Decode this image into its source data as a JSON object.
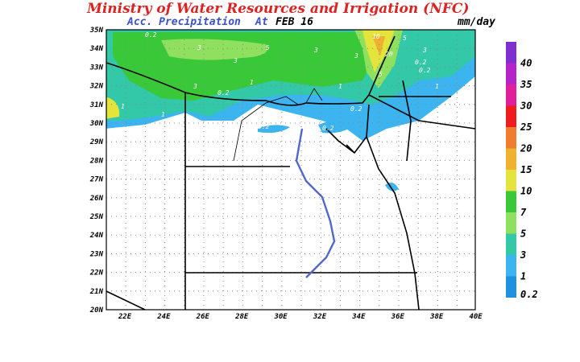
{
  "header": {
    "title": "Ministry of Water Resources and Irrigation (NFC)",
    "subtitle": "Acc. Precipitation",
    "at": "At",
    "date": "FEB 16",
    "unit": "mm/day"
  },
  "map": {
    "lat_labels": [
      "35N",
      "34N",
      "33N",
      "32N",
      "31N",
      "30N",
      "29N",
      "28N",
      "27N",
      "26N",
      "25N",
      "24N",
      "23N",
      "22N",
      "21N",
      "20N"
    ],
    "lon_labels": [
      "22E",
      "24E",
      "26E",
      "28E",
      "30E",
      "32E",
      "34E",
      "36E",
      "38E",
      "40E"
    ],
    "contour_labels": [
      "0.2",
      "3",
      "3",
      "5",
      "3",
      "1",
      "0.2",
      "3",
      "5",
      "1",
      "0.2",
      "0.2",
      "0.2",
      "0.2",
      "0.2",
      "10",
      "20",
      "5",
      "3",
      "1",
      "0.2",
      "0.2",
      "1",
      "1",
      "3"
    ]
  },
  "legend": {
    "levels": [
      40,
      35,
      30,
      25,
      20,
      15,
      10,
      7,
      5,
      3,
      1,
      0.2
    ],
    "colors": [
      "#7e2fd0",
      "#b424c8",
      "#e0209a",
      "#ee1c1c",
      "#f07c30",
      "#f0b030",
      "#e4e43c",
      "#38c838",
      "#90e060",
      "#32c8a8",
      "#3cb4f0",
      "#2090e0"
    ]
  }
}
